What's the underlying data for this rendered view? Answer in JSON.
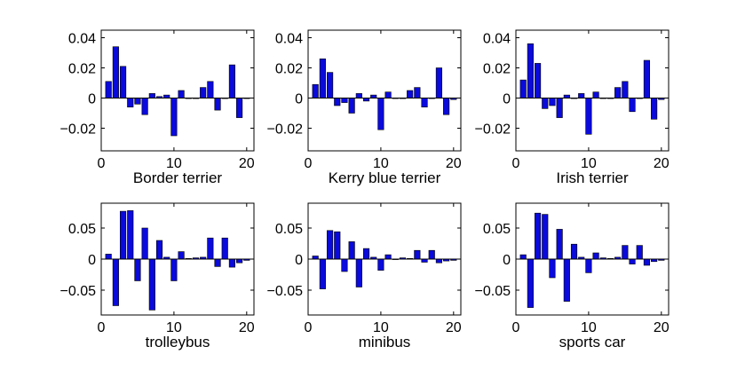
{
  "figure": {
    "bar_fill": "#0a0adc",
    "bar_stroke": "#000000",
    "axis_color": "#000000"
  },
  "chart_data": [
    {
      "type": "bar",
      "xlabel": "Border terrier",
      "xlim": [
        0,
        21
      ],
      "ylim": [
        -0.035,
        0.045
      ],
      "xticks": [
        0,
        10,
        20
      ],
      "yticks": [
        -0.02,
        0,
        0.02,
        0.04
      ],
      "ytick_labels": [
        "−0.02",
        "0",
        "0.02",
        "0.04"
      ],
      "x": [
        1,
        2,
        3,
        4,
        5,
        6,
        7,
        8,
        9,
        10,
        11,
        12,
        13,
        14,
        15,
        16,
        17,
        18,
        19,
        20
      ],
      "values": [
        0.011,
        0.034,
        0.021,
        -0.006,
        -0.004,
        -0.011,
        0.003,
        0.001,
        0.002,
        -0.025,
        0.005,
        0.0,
        0.0,
        0.007,
        0.011,
        -0.008,
        0.0,
        0.022,
        -0.013,
        0.0
      ]
    },
    {
      "type": "bar",
      "xlabel": "Kerry blue terrier",
      "xlim": [
        0,
        21
      ],
      "ylim": [
        -0.035,
        0.045
      ],
      "xticks": [
        0,
        10,
        20
      ],
      "yticks": [
        -0.02,
        0,
        0.02,
        0.04
      ],
      "ytick_labels": [
        "−0.02",
        "0",
        "0.02",
        "0.04"
      ],
      "x": [
        1,
        2,
        3,
        4,
        5,
        6,
        7,
        8,
        9,
        10,
        11,
        12,
        13,
        14,
        15,
        16,
        17,
        18,
        19,
        20
      ],
      "values": [
        0.009,
        0.026,
        0.017,
        -0.005,
        -0.003,
        -0.01,
        0.003,
        -0.002,
        0.002,
        -0.021,
        0.004,
        0.0,
        0.0,
        0.005,
        0.007,
        -0.006,
        0.0,
        0.02,
        -0.011,
        -0.001
      ]
    },
    {
      "type": "bar",
      "xlabel": "Irish terrier",
      "xlim": [
        0,
        21
      ],
      "ylim": [
        -0.035,
        0.045
      ],
      "xticks": [
        0,
        10,
        20
      ],
      "yticks": [
        -0.02,
        0,
        0.02,
        0.04
      ],
      "ytick_labels": [
        "−0.02",
        "0",
        "0.02",
        "0.04"
      ],
      "x": [
        1,
        2,
        3,
        4,
        5,
        6,
        7,
        8,
        9,
        10,
        11,
        12,
        13,
        14,
        15,
        16,
        17,
        18,
        19,
        20
      ],
      "values": [
        0.012,
        0.036,
        0.023,
        -0.007,
        -0.005,
        -0.013,
        0.002,
        0.0,
        0.003,
        -0.024,
        0.004,
        0.0,
        0.0,
        0.007,
        0.011,
        -0.009,
        0.0,
        0.025,
        -0.014,
        -0.001
      ]
    },
    {
      "type": "bar",
      "xlabel": "trolleybus",
      "xlim": [
        0,
        21
      ],
      "ylim": [
        -0.09,
        0.09
      ],
      "xticks": [
        0,
        10,
        20
      ],
      "yticks": [
        -0.05,
        0,
        0.05
      ],
      "ytick_labels": [
        "−0.05",
        "0",
        "0.05"
      ],
      "x": [
        1,
        2,
        3,
        4,
        5,
        6,
        7,
        8,
        9,
        10,
        11,
        12,
        13,
        14,
        15,
        16,
        17,
        18,
        19,
        20
      ],
      "values": [
        0.008,
        -0.075,
        0.077,
        0.078,
        -0.035,
        0.05,
        -0.082,
        0.03,
        0.003,
        -0.035,
        0.012,
        0.001,
        0.002,
        0.003,
        0.034,
        -0.012,
        0.034,
        -0.013,
        -0.006,
        -0.002
      ]
    },
    {
      "type": "bar",
      "xlabel": "minibus",
      "xlim": [
        0,
        21
      ],
      "ylim": [
        -0.09,
        0.09
      ],
      "xticks": [
        0,
        10,
        20
      ],
      "yticks": [
        -0.05,
        0,
        0.05
      ],
      "ytick_labels": [
        "−0.05",
        "0",
        "0.05"
      ],
      "x": [
        1,
        2,
        3,
        4,
        5,
        6,
        7,
        8,
        9,
        10,
        11,
        12,
        13,
        14,
        15,
        16,
        17,
        18,
        19,
        20
      ],
      "values": [
        0.005,
        -0.048,
        0.046,
        0.044,
        -0.02,
        0.028,
        -0.045,
        0.017,
        0.003,
        -0.018,
        0.007,
        0.0,
        0.002,
        0.001,
        0.014,
        -0.005,
        0.014,
        -0.006,
        -0.003,
        -0.002
      ]
    },
    {
      "type": "bar",
      "xlabel": "sports car",
      "xlim": [
        0,
        21
      ],
      "ylim": [
        -0.09,
        0.09
      ],
      "xticks": [
        0,
        10,
        20
      ],
      "yticks": [
        -0.05,
        0,
        0.05
      ],
      "ytick_labels": [
        "−0.05",
        "0",
        "0.05"
      ],
      "x": [
        1,
        2,
        3,
        4,
        5,
        6,
        7,
        8,
        9,
        10,
        11,
        12,
        13,
        14,
        15,
        16,
        17,
        18,
        19,
        20
      ],
      "values": [
        0.007,
        -0.078,
        0.074,
        0.072,
        -0.03,
        0.048,
        -0.068,
        0.024,
        0.003,
        -0.022,
        0.01,
        0.002,
        0.001,
        0.003,
        0.022,
        -0.008,
        0.022,
        -0.01,
        -0.004,
        -0.002
      ]
    }
  ]
}
